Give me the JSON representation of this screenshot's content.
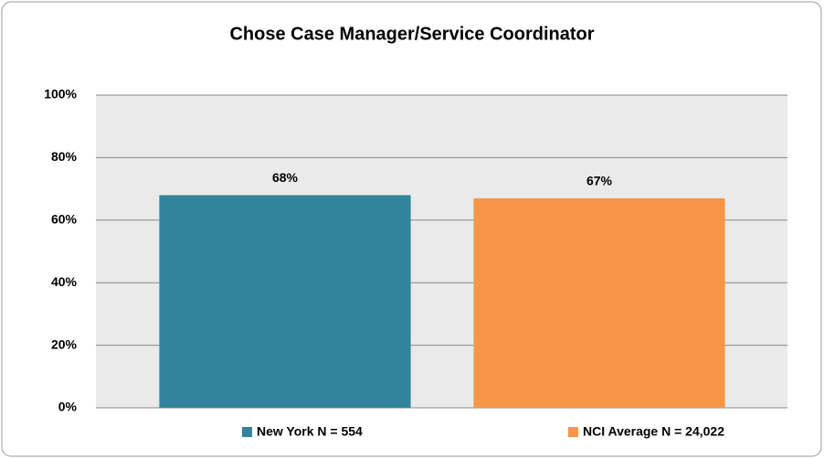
{
  "chart_data": {
    "type": "bar",
    "title": "Chose Case Manager/Service Coordinator",
    "categories": [
      "New York N = 554",
      "NCI Average N = 24,022"
    ],
    "values": [
      68,
      67
    ],
    "value_labels": [
      "68%",
      "67%"
    ],
    "colors": [
      "#31849b",
      "#f79646"
    ],
    "ylim": [
      0,
      100
    ],
    "yticks": [
      {
        "value": 0,
        "label": "0%"
      },
      {
        "value": 20,
        "label": "20%"
      },
      {
        "value": 40,
        "label": "40%"
      },
      {
        "value": 60,
        "label": "60%"
      },
      {
        "value": 80,
        "label": "80%"
      },
      {
        "value": 100,
        "label": "100%"
      }
    ],
    "grid": true,
    "legend": "bottom"
  }
}
